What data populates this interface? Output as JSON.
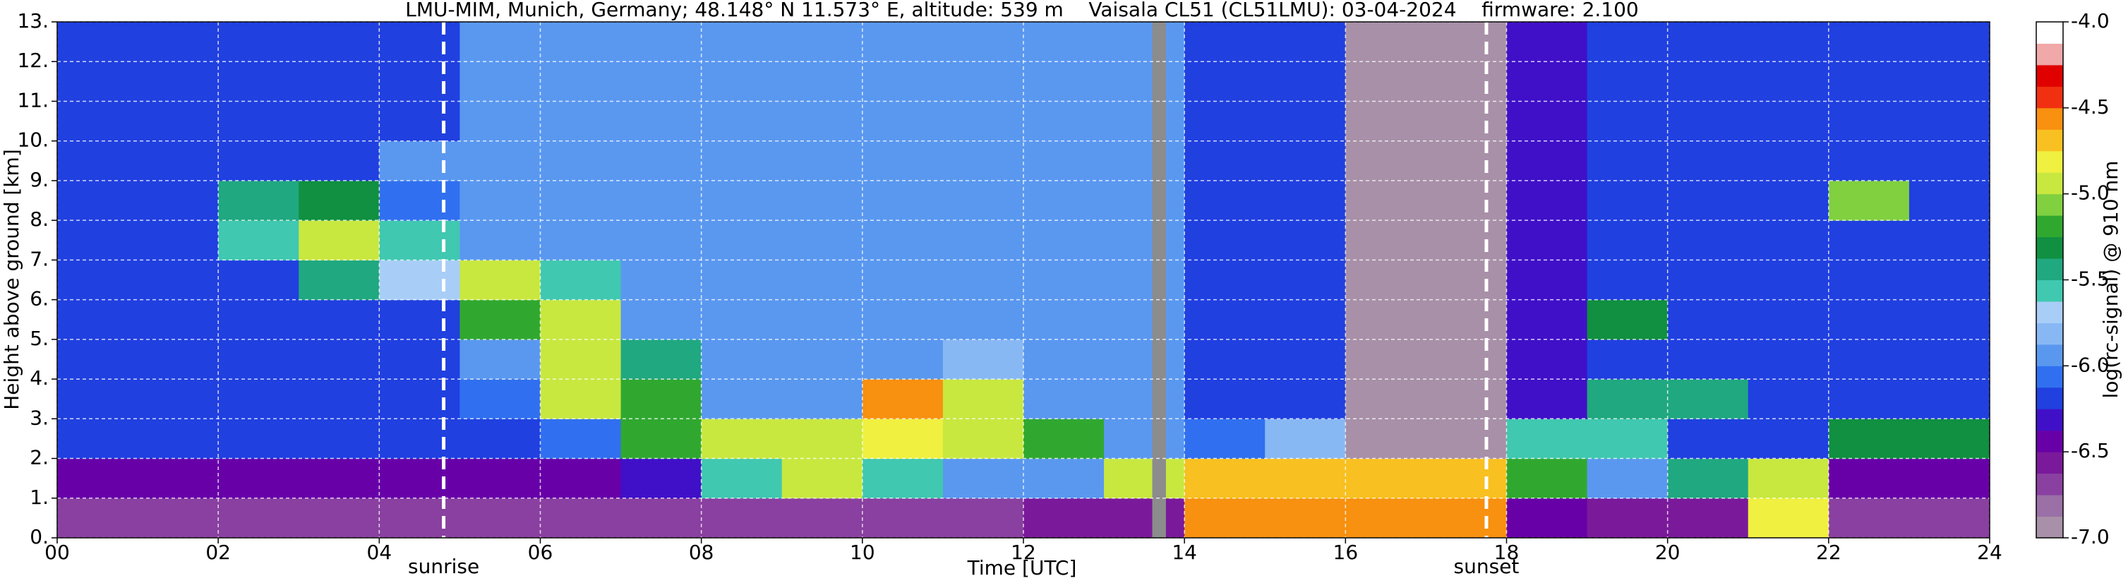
{
  "chart_data": {
    "type": "heatmap",
    "title": "LMU-MIM, Munich, Germany; 48.148° N 11.573° E, altitude: 539 m    Vaisala CL51 (CL51LMU): 03-04-2024    firmware: 2.100",
    "x_label": "Time [UTC]",
    "y_label": "Height above ground [km]",
    "colorbar_label": "log(rc-signal) @ 910 nm",
    "xlim": [
      0,
      24
    ],
    "xticks": [
      {
        "value": 0,
        "label": "00"
      },
      {
        "value": 2,
        "label": "02"
      },
      {
        "value": 4,
        "label": "04"
      },
      {
        "value": 6,
        "label": "06"
      },
      {
        "value": 8,
        "label": "08"
      },
      {
        "value": 10,
        "label": "10"
      },
      {
        "value": 12,
        "label": "12"
      },
      {
        "value": 14,
        "label": "14"
      },
      {
        "value": 16,
        "label": "16"
      },
      {
        "value": 18,
        "label": "18"
      },
      {
        "value": 20,
        "label": "20"
      },
      {
        "value": 22,
        "label": "22"
      },
      {
        "value": 24,
        "label": "24"
      }
    ],
    "ylim": [
      0,
      13
    ],
    "yticks": [
      {
        "value": 0,
        "label": "0."
      },
      {
        "value": 1,
        "label": "1."
      },
      {
        "value": 2,
        "label": "2."
      },
      {
        "value": 3,
        "label": "3."
      },
      {
        "value": 4,
        "label": "4."
      },
      {
        "value": 5,
        "label": "5."
      },
      {
        "value": 6,
        "label": "6."
      },
      {
        "value": 7,
        "label": "7."
      },
      {
        "value": 8,
        "label": "8."
      },
      {
        "value": 9,
        "label": "9."
      },
      {
        "value": 10,
        "label": "10."
      },
      {
        "value": 11,
        "label": "11."
      },
      {
        "value": 12,
        "label": "12."
      },
      {
        "value": 13,
        "label": "13."
      }
    ],
    "zlim": [
      -7,
      -4
    ],
    "zticks": [
      {
        "value": -4,
        "label": "-4.0"
      },
      {
        "value": -4.5,
        "label": "-4.5"
      },
      {
        "value": -5,
        "label": "-5.0"
      },
      {
        "value": -5.5,
        "label": "-5.5"
      },
      {
        "value": -6,
        "label": "-6.0"
      },
      {
        "value": -6.5,
        "label": "-6.5"
      },
      {
        "value": -7,
        "label": "-7.0"
      }
    ],
    "colormap": [
      "#a890a8",
      "#9a70a6",
      "#8a40a0",
      "#7a1a9a",
      "#6800a8",
      "#4010c8",
      "#2040e0",
      "#3070f0",
      "#5a98f0",
      "#88b8f4",
      "#a8cef8",
      "#40c8b0",
      "#20a880",
      "#109040",
      "#30a830",
      "#80d040",
      "#c8e840",
      "#f0f040",
      "#f8c020",
      "#f89010",
      "#f03010",
      "#e00000",
      "#f0a8a8",
      "#ffffff"
    ],
    "x": [
      0,
      1,
      2,
      3,
      4,
      5,
      6,
      7,
      8,
      9,
      10,
      11,
      12,
      13,
      14,
      15,
      16,
      17,
      18,
      19,
      20,
      21,
      22,
      23
    ],
    "y": [
      0,
      1,
      2,
      3,
      4,
      5,
      6,
      7,
      8,
      9,
      10,
      11,
      12
    ],
    "z": [
      [
        -6.7,
        -6.7,
        -6.7,
        -6.7,
        -6.7,
        -6.7,
        -6.7,
        -6.7,
        -6.7,
        -6.7,
        -6.7,
        -6.7,
        -6.6,
        -6.6,
        -4.6,
        -4.6,
        -4.6,
        -4.6,
        -6.5,
        -6.6,
        -6.6,
        -4.8,
        -6.7,
        -6.7
      ],
      [
        -6.5,
        -6.5,
        -6.5,
        -6.5,
        -6.5,
        -6.5,
        -6.4,
        -6.3,
        -5.6,
        -5.0,
        -5.6,
        -6.0,
        -5.9,
        -5.0,
        -4.7,
        -4.7,
        -4.7,
        -4.7,
        -5.2,
        -6.0,
        -5.5,
        -5.0,
        -6.4,
        -6.4
      ],
      [
        -6.2,
        -6.2,
        -6.2,
        -6.2,
        -6.2,
        -6.2,
        -6.1,
        -5.2,
        -4.9,
        -4.9,
        -4.8,
        -4.9,
        -5.2,
        -6.0,
        -6.1,
        -5.8,
        -6.9,
        -6.9,
        -5.6,
        -5.6,
        -6.2,
        -6.2,
        -5.3,
        -5.3
      ],
      [
        -6.2,
        -6.2,
        -6.2,
        -6.2,
        -6.2,
        -6.1,
        -5.0,
        -5.2,
        -5.9,
        -5.9,
        -4.6,
        -5.0,
        -5.9,
        -6.0,
        -6.2,
        -6.2,
        -6.9,
        -6.9,
        -6.3,
        -5.4,
        -5.4,
        -6.2,
        -6.2,
        -6.2
      ],
      [
        -6.2,
        -6.2,
        -6.2,
        -6.2,
        -6.2,
        -6.0,
        -5.0,
        -5.5,
        -5.9,
        -5.9,
        -5.9,
        -5.8,
        -5.9,
        -6.0,
        -6.2,
        -6.2,
        -6.9,
        -6.9,
        -6.3,
        -6.2,
        -6.2,
        -6.2,
        -6.2,
        -6.2
      ],
      [
        -6.2,
        -6.2,
        -6.2,
        -6.2,
        -6.2,
        -5.2,
        -4.9,
        -5.9,
        -5.9,
        -5.9,
        -5.9,
        -5.9,
        -5.9,
        -6.0,
        -6.2,
        -6.2,
        -6.9,
        -6.9,
        -6.3,
        -5.3,
        -6.2,
        -6.2,
        -6.2,
        -6.2
      ],
      [
        -6.2,
        -6.2,
        -6.2,
        -5.5,
        -5.7,
        -5.0,
        -5.6,
        -5.9,
        -5.9,
        -5.9,
        -5.9,
        -5.9,
        -5.9,
        -6.0,
        -6.2,
        -6.2,
        -6.9,
        -6.9,
        -6.3,
        -6.2,
        -6.2,
        -6.2,
        -6.2,
        -6.2
      ],
      [
        -6.2,
        -6.2,
        -5.6,
        -4.9,
        -5.6,
        -5.9,
        -5.9,
        -5.9,
        -5.9,
        -5.9,
        -5.9,
        -5.9,
        -5.9,
        -6.0,
        -6.2,
        -6.2,
        -6.9,
        -6.9,
        -6.3,
        -6.2,
        -6.2,
        -6.2,
        -6.2,
        -6.2
      ],
      [
        -6.2,
        -6.2,
        -5.5,
        -5.3,
        -6.1,
        -5.9,
        -5.9,
        -5.9,
        -5.9,
        -5.9,
        -5.9,
        -5.9,
        -5.9,
        -6.0,
        -6.2,
        -6.2,
        -6.9,
        -6.9,
        -6.3,
        -6.2,
        -6.2,
        -6.2,
        -5.1,
        -6.2
      ],
      [
        -6.2,
        -6.2,
        -6.2,
        -6.2,
        -6.0,
        -5.9,
        -5.9,
        -5.9,
        -5.9,
        -5.9,
        -5.9,
        -5.9,
        -5.9,
        -6.0,
        -6.2,
        -6.2,
        -6.9,
        -6.9,
        -6.3,
        -6.2,
        -6.2,
        -6.2,
        -6.2,
        -6.2
      ],
      [
        -6.2,
        -6.2,
        -6.2,
        -6.2,
        -6.2,
        -5.9,
        -5.9,
        -5.9,
        -5.9,
        -5.9,
        -5.9,
        -5.9,
        -5.9,
        -6.0,
        -6.2,
        -6.2,
        -6.9,
        -6.9,
        -6.3,
        -6.2,
        -6.2,
        -6.2,
        -6.2,
        -6.2
      ],
      [
        -6.2,
        -6.2,
        -6.2,
        -6.2,
        -6.2,
        -5.9,
        -5.9,
        -5.9,
        -5.9,
        -5.9,
        -5.9,
        -5.9,
        -5.9,
        -6.0,
        -6.2,
        -6.2,
        -6.9,
        -6.9,
        -6.3,
        -6.2,
        -6.2,
        -6.2,
        -6.2,
        -6.2
      ],
      [
        -6.2,
        -6.2,
        -6.2,
        -6.2,
        -6.2,
        -5.9,
        -5.9,
        -5.9,
        -5.9,
        -5.9,
        -5.9,
        -5.9,
        -5.9,
        -6.0,
        -6.2,
        -6.2,
        -6.9,
        -6.9,
        -6.3,
        -6.2,
        -6.2,
        -6.2,
        -6.2,
        -6.2
      ]
    ],
    "grid": true,
    "missing_data": {
      "color": "#8c8c8c",
      "ranges": [
        [
          13.6,
          13.77
        ]
      ]
    },
    "annotations": [
      {
        "label": "sunrise",
        "x": 4.8
      },
      {
        "label": "sunset",
        "x": 17.75
      }
    ]
  }
}
